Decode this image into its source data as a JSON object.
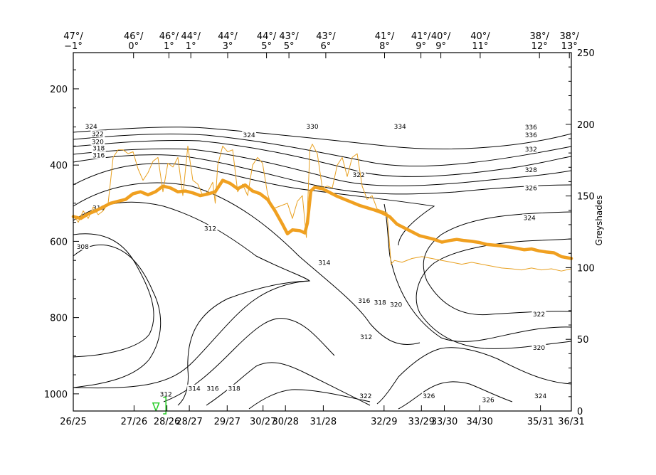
{
  "chart_data": {
    "type": "line",
    "title": "",
    "left_axis": {
      "ticks": [
        200,
        400,
        600,
        800,
        1000
      ],
      "range": [
        105,
        1045
      ],
      "inverted": true
    },
    "right_axis": {
      "label": "Greyshades",
      "ticks": [
        0,
        50,
        100,
        150,
        200,
        250
      ],
      "range": [
        0,
        250
      ]
    },
    "bottom_axis": {
      "ticks": [
        {
          "x": 0,
          "label": "26/25"
        },
        {
          "x": 12.2,
          "label": "27/26"
        },
        {
          "x": 18.8,
          "label": "28/26"
        },
        {
          "x": 23.3,
          "label": "28/27"
        },
        {
          "x": 30.9,
          "label": "29/27"
        },
        {
          "x": 38.1,
          "label": "30/27"
        },
        {
          "x": 42.6,
          "label": "30/28"
        },
        {
          "x": 50.2,
          "label": "31/28"
        },
        {
          "x": 62.4,
          "label": "32/29"
        },
        {
          "x": 69.9,
          "label": "33/29"
        },
        {
          "x": 74.5,
          "label": "33/30"
        },
        {
          "x": 81.6,
          "label": "34/30"
        },
        {
          "x": 93.8,
          "label": "35/31"
        },
        {
          "x": 100,
          "label": "36/31"
        }
      ]
    },
    "top_axis": {
      "ticks": [
        {
          "x": 0,
          "lat": "47°/",
          "lon": "−1°"
        },
        {
          "x": 12.1,
          "lat": "46°/",
          "lon": "0°"
        },
        {
          "x": 19.2,
          "lat": "46°/",
          "lon": "1°"
        },
        {
          "x": 23.6,
          "lat": "44°/",
          "lon": "1°"
        },
        {
          "x": 31.0,
          "lat": "44°/",
          "lon": "3°"
        },
        {
          "x": 38.8,
          "lat": "44°/",
          "lon": "5°"
        },
        {
          "x": 43.3,
          "lat": "43°/",
          "lon": "5°"
        },
        {
          "x": 50.7,
          "lat": "43°/",
          "lon": "6°"
        },
        {
          "x": 62.5,
          "lat": "41°/",
          "lon": "8°"
        },
        {
          "x": 69.8,
          "lat": "41°/",
          "lon": "9°"
        },
        {
          "x": 73.8,
          "lat": "40°/",
          "lon": "9°"
        },
        {
          "x": 81.7,
          "lat": "40°/",
          "lon": "11°"
        },
        {
          "x": 93.6,
          "lat": "38°/",
          "lon": "12°"
        },
        {
          "x": 99.6,
          "lat": "38°/",
          "lon": "13°"
        }
      ]
    },
    "contour_labels": [
      {
        "text": "324",
        "x": 3.6,
        "p": 298
      },
      {
        "text": "322",
        "x": 4.9,
        "p": 318
      },
      {
        "text": "320",
        "x": 4.9,
        "p": 338
      },
      {
        "text": "318",
        "x": 5.1,
        "p": 355
      },
      {
        "text": "316",
        "x": 5.1,
        "p": 374
      },
      {
        "text": "310",
        "x": 5.1,
        "p": 512
      },
      {
        "text": "308",
        "x": 1.9,
        "p": 613
      },
      {
        "text": "312",
        "x": 27.5,
        "p": 566
      },
      {
        "text": "314",
        "x": 50.4,
        "p": 655
      },
      {
        "text": "316",
        "x": 58.4,
        "p": 755
      },
      {
        "text": "318",
        "x": 61.6,
        "p": 760
      },
      {
        "text": "320",
        "x": 64.8,
        "p": 765
      },
      {
        "text": "312",
        "x": 58.8,
        "p": 850
      },
      {
        "text": "322",
        "x": 58.7,
        "p": 1005
      },
      {
        "text": "326",
        "x": 71.4,
        "p": 1005
      },
      {
        "text": "326",
        "x": 83.3,
        "p": 1015
      },
      {
        "text": "324",
        "x": 93.8,
        "p": 1005
      },
      {
        "text": "320",
        "x": 93.5,
        "p": 878
      },
      {
        "text": "322",
        "x": 93.5,
        "p": 790
      },
      {
        "text": "324",
        "x": 91.6,
        "p": 538
      },
      {
        "text": "326",
        "x": 91.9,
        "p": 459
      },
      {
        "text": "328",
        "x": 91.9,
        "p": 412
      },
      {
        "text": "332",
        "x": 91.9,
        "p": 358
      },
      {
        "text": "336",
        "x": 91.9,
        "p": 320
      },
      {
        "text": "336",
        "x": 91.9,
        "p": 300
      },
      {
        "text": "334",
        "x": 65.6,
        "p": 298
      },
      {
        "text": "330",
        "x": 48.0,
        "p": 298
      },
      {
        "text": "324",
        "x": 35.3,
        "p": 320
      },
      {
        "text": "322",
        "x": 57.3,
        "p": 425
      },
      {
        "text": "312",
        "x": 18.6,
        "p": 1000
      },
      {
        "text": "314",
        "x": 24.3,
        "p": 985
      },
      {
        "text": "316",
        "x": 28.0,
        "p": 985
      },
      {
        "text": "318",
        "x": 32.3,
        "p": 985
      }
    ],
    "series": [
      {
        "color": "#f0a020",
        "axis": "left",
        "points": [
          [
            0,
            535
          ],
          [
            1.5,
            540
          ],
          [
            3,
            528
          ],
          [
            4.5,
            520
          ],
          [
            6,
            510
          ],
          [
            7.5,
            500
          ],
          [
            9,
            495
          ],
          [
            10.5,
            490
          ],
          [
            12,
            475
          ],
          [
            13.5,
            470
          ],
          [
            15,
            478
          ],
          [
            16.5,
            470
          ],
          [
            18,
            455
          ],
          [
            19.5,
            460
          ],
          [
            21,
            470
          ],
          [
            22.5,
            468
          ],
          [
            24,
            473
          ],
          [
            25.5,
            480
          ],
          [
            27,
            476
          ],
          [
            28.5,
            470
          ],
          [
            30,
            440
          ],
          [
            31.5,
            448
          ],
          [
            33,
            462
          ],
          [
            34.5,
            452
          ],
          [
            36,
            468
          ],
          [
            37.5,
            475
          ],
          [
            39,
            490
          ],
          [
            40.5,
            520
          ],
          [
            42,
            555
          ],
          [
            43,
            580
          ],
          [
            44,
            570
          ],
          [
            45.5,
            572
          ],
          [
            46.5,
            578
          ],
          [
            47,
            552
          ],
          [
            47.7,
            468
          ],
          [
            48.5,
            458
          ],
          [
            50,
            462
          ],
          [
            51.5,
            472
          ],
          [
            53,
            482
          ],
          [
            54.5,
            490
          ],
          [
            56,
            498
          ],
          [
            57.5,
            506
          ],
          [
            59,
            512
          ],
          [
            60.5,
            518
          ],
          [
            62,
            525
          ],
          [
            63.5,
            535
          ],
          [
            65,
            555
          ],
          [
            66.5,
            565
          ],
          [
            68,
            575
          ],
          [
            69.5,
            585
          ],
          [
            71,
            590
          ],
          [
            72.5,
            595
          ],
          [
            74,
            602
          ],
          [
            75.5,
            598
          ],
          [
            77,
            595
          ],
          [
            78.5,
            598
          ],
          [
            80,
            600
          ],
          [
            81.5,
            603
          ],
          [
            83,
            608
          ],
          [
            84.5,
            610
          ],
          [
            86,
            612
          ],
          [
            87.5,
            615
          ],
          [
            89,
            618
          ],
          [
            90.5,
            622
          ],
          [
            92,
            620
          ],
          [
            93.5,
            625
          ],
          [
            95,
            628
          ],
          [
            96.5,
            630
          ],
          [
            98,
            640
          ],
          [
            100,
            645
          ]
        ]
      },
      {
        "color": "#e8a020",
        "axis": "left",
        "points": [
          [
            0,
            530
          ],
          [
            1,
            550
          ],
          [
            2,
            520
          ],
          [
            3,
            540
          ],
          [
            4,
            510
          ],
          [
            5,
            530
          ],
          [
            6,
            520
          ],
          [
            7,
            500
          ],
          [
            8,
            380
          ],
          [
            9,
            360
          ],
          [
            10,
            360
          ],
          [
            11,
            370
          ],
          [
            12,
            365
          ],
          [
            13,
            410
          ],
          [
            14,
            440
          ],
          [
            15,
            420
          ],
          [
            16,
            390
          ],
          [
            17,
            380
          ],
          [
            18,
            470
          ],
          [
            19,
            395
          ],
          [
            20,
            405
          ],
          [
            21,
            380
          ],
          [
            22,
            480
          ],
          [
            23,
            350
          ],
          [
            24,
            440
          ],
          [
            25,
            450
          ],
          [
            26,
            480
          ],
          [
            27,
            470
          ],
          [
            28,
            445
          ],
          [
            28.5,
            500
          ],
          [
            29,
            400
          ],
          [
            30,
            350
          ],
          [
            31,
            365
          ],
          [
            32,
            360
          ],
          [
            33,
            470
          ],
          [
            34,
            450
          ],
          [
            35,
            480
          ],
          [
            36,
            400
          ],
          [
            37,
            380
          ],
          [
            38,
            395
          ],
          [
            39,
            475
          ],
          [
            40,
            515
          ],
          [
            41,
            510
          ],
          [
            42,
            505
          ],
          [
            43,
            500
          ],
          [
            44,
            540
          ],
          [
            45,
            495
          ],
          [
            46,
            480
          ],
          [
            46.8,
            590
          ],
          [
            47.5,
            360
          ],
          [
            48,
            345
          ],
          [
            49,
            370
          ],
          [
            50,
            460
          ],
          [
            51,
            455
          ],
          [
            52,
            460
          ],
          [
            53,
            400
          ],
          [
            54,
            380
          ],
          [
            55,
            430
          ],
          [
            56,
            380
          ],
          [
            57,
            370
          ],
          [
            58,
            455
          ],
          [
            59,
            490
          ],
          [
            60,
            480
          ],
          [
            61,
            515
          ],
          [
            62,
            520
          ],
          [
            63,
            525
          ],
          [
            63.8,
            660
          ],
          [
            64.5,
            650
          ],
          [
            66,
            655
          ],
          [
            68,
            645
          ],
          [
            70,
            640
          ],
          [
            72,
            645
          ],
          [
            74,
            650
          ],
          [
            76,
            655
          ],
          [
            78,
            660
          ],
          [
            80,
            655
          ],
          [
            82,
            660
          ],
          [
            84,
            665
          ],
          [
            86,
            670
          ],
          [
            88,
            672
          ],
          [
            90,
            675
          ],
          [
            92,
            670
          ],
          [
            94,
            675
          ],
          [
            96,
            672
          ],
          [
            98,
            678
          ],
          [
            100,
            672
          ]
        ]
      }
    ],
    "marker": {
      "label": "∇",
      "x": 16.6,
      "p": 1035,
      "color": "#22cc22"
    }
  }
}
